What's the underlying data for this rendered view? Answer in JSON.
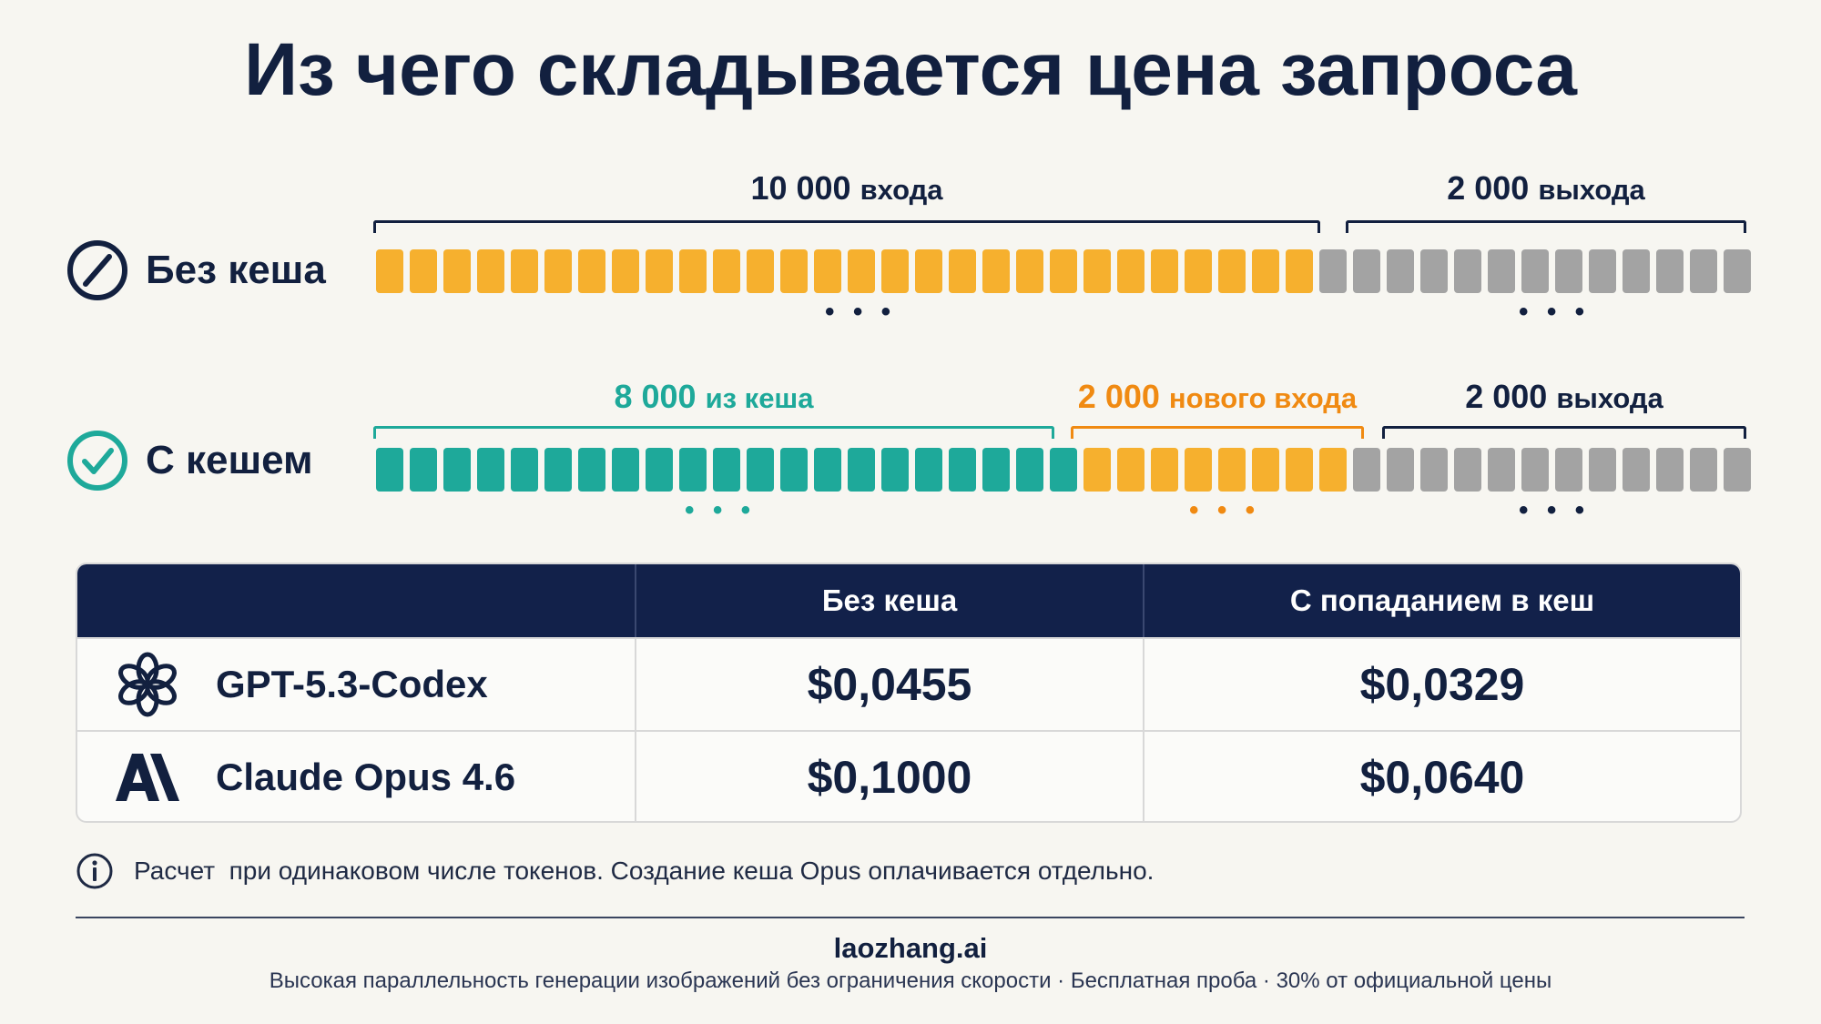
{
  "title": "Из чего складывается цена запроса",
  "rows": {
    "no_cache": {
      "label": "Без кеша",
      "input_label_num": "10 000",
      "input_label_word": "входа",
      "output_label_num": "2 000",
      "output_label_word": "выхода",
      "input_tokens_shown": 28,
      "output_tokens_shown": 13,
      "dots": "• • •"
    },
    "with_cache": {
      "label": "С кешем",
      "cached_label_num": "8 000",
      "cached_label_word": "из кеша",
      "new_input_label_num": "2 000",
      "new_input_label_word": "нового входа",
      "output_label_num": "2 000",
      "output_label_word": "выхода",
      "cached_tokens_shown": 21,
      "new_input_tokens_shown": 8,
      "output_tokens_shown": 12,
      "dots": "• • •"
    }
  },
  "table": {
    "headers": [
      "",
      "Без кеша",
      "С попаданием в кеш"
    ],
    "rows": [
      {
        "model": "GPT-5.3-Codex",
        "icon": "openai-logo-icon",
        "no_cache": "$0,0455",
        "cache_hit": "$0,0329"
      },
      {
        "model": "Claude Opus 4.6",
        "icon": "anthropic-logo-icon",
        "no_cache": "$0,1000",
        "cache_hit": "$0,0640"
      }
    ]
  },
  "note": "Расчет  при одинаковом числе токенов. Создание кеша Opus оплачивается отдельно.",
  "footer": {
    "brand": "laozhang.ai",
    "tagline": "Высокая параллельность генерации изображений без ограничения скорости · Бесплатная проба · 30% от официальной цены"
  },
  "colors": {
    "navy": "#12214a",
    "input": "#f6b02e",
    "output": "#a3a3a3",
    "cached": "#1ea99a",
    "new_input_label": "#f08a12"
  }
}
